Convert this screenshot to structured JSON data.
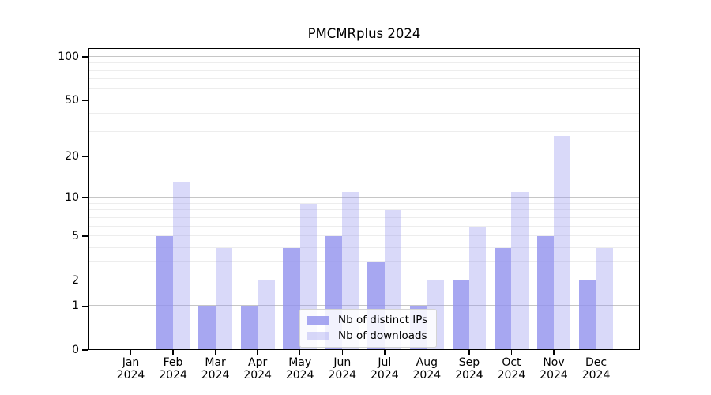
{
  "chart_data": {
    "type": "bar",
    "title": "PMCMRplus 2024",
    "year": "2024",
    "categories": [
      "Jan",
      "Feb",
      "Mar",
      "Apr",
      "May",
      "Jun",
      "Jul",
      "Aug",
      "Sep",
      "Oct",
      "Nov",
      "Dec"
    ],
    "series": [
      {
        "name": "Nb of distinct IPs",
        "color": "#9191EDCC",
        "values": [
          0,
          5,
          1,
          1,
          4,
          5,
          3,
          1,
          2,
          4,
          5,
          2
        ]
      },
      {
        "name": "Nb of downloads",
        "color": "#9191ED59",
        "values": [
          0,
          13,
          4,
          2,
          9,
          11,
          8,
          2,
          6,
          11,
          28,
          4
        ]
      }
    ],
    "yscale": "log1p",
    "ylim": [
      0,
      110
    ],
    "yticks": [
      0,
      1,
      2,
      5,
      10,
      20,
      50,
      100
    ],
    "gridlines": {
      "major": [
        1,
        10,
        100
      ],
      "minor": [
        2,
        3,
        4,
        5,
        6,
        7,
        8,
        9,
        20,
        30,
        40,
        50,
        60,
        70,
        80,
        90
      ]
    },
    "legend_position": "bottom-center-inside",
    "colors": {
      "major_grid": "#c6c6c6",
      "minor_grid": "#ededed",
      "axis": "#000000",
      "background": "#ffffff"
    }
  }
}
